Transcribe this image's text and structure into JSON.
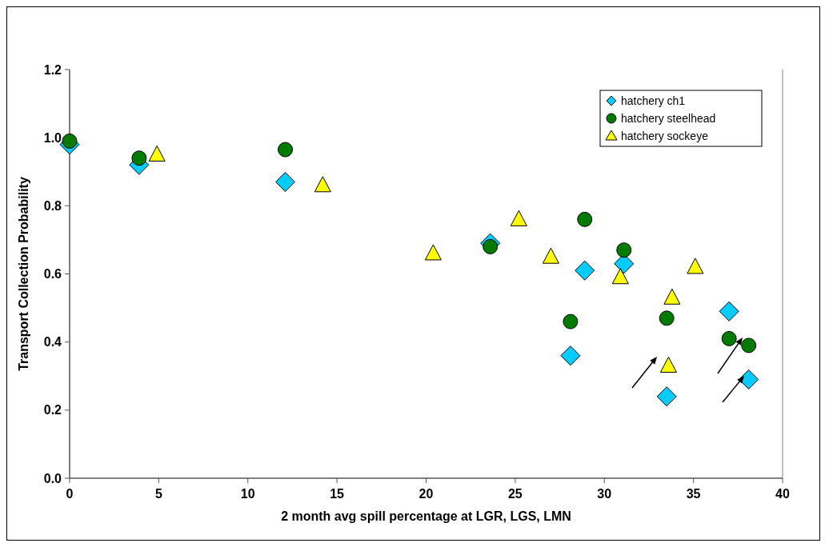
{
  "chart_data": {
    "type": "scatter",
    "xlabel": "2 month avg spill percentage at LGR, LGS, LMN",
    "ylabel": "Transport Collection Probability",
    "xlim": [
      0,
      40
    ],
    "xticks": [
      0,
      5,
      10,
      15,
      20,
      25,
      30,
      35,
      40
    ],
    "ylim": [
      0,
      1.2
    ],
    "yticks": [
      {
        "value": 0,
        "label": "0.0"
      },
      {
        "value": 0.2,
        "label": "0.2"
      },
      {
        "value": 0.4,
        "label": "0.4"
      },
      {
        "value": 0.6,
        "label": "0.6"
      },
      {
        "value": 0.8,
        "label": "0.8"
      },
      {
        "value": 1,
        "label": "1.0"
      },
      {
        "value": 1.2,
        "label": "1.2"
      }
    ],
    "grid": false,
    "legend": "top right",
    "series": [
      {
        "name": "hatchery ch1",
        "color": "#00ccff",
        "marker": "diamond",
        "x": [
          0,
          3.9,
          12.1,
          23.6,
          28.9,
          31.1,
          28.1,
          33.5,
          37,
          38.1
        ],
        "values": [
          0.98,
          0.92,
          0.87,
          0.69,
          0.61,
          0.63,
          0.36,
          0.24,
          0.49,
          0.29
        ]
      },
      {
        "name": "hatchery steelhead",
        "color": "#007a00",
        "marker": "circle",
        "x": [
          0,
          3.9,
          12.1,
          23.6,
          28.9,
          31.1,
          28.1,
          33.5,
          37,
          38.1
        ],
        "values": [
          0.99,
          0.94,
          0.965,
          0.68,
          0.76,
          0.67,
          0.46,
          0.47,
          0.41,
          0.39
        ]
      },
      {
        "name": "hatchery sockeye",
        "color": "#ffff00",
        "marker": "triangle",
        "x": [
          4.9,
          14.2,
          20.4,
          25.2,
          27,
          30.9,
          33.8,
          35.1,
          33.6
        ],
        "values": [
          0.95,
          0.86,
          0.66,
          0.76,
          0.65,
          0.59,
          0.53,
          0.62,
          0.33
        ]
      }
    ]
  }
}
